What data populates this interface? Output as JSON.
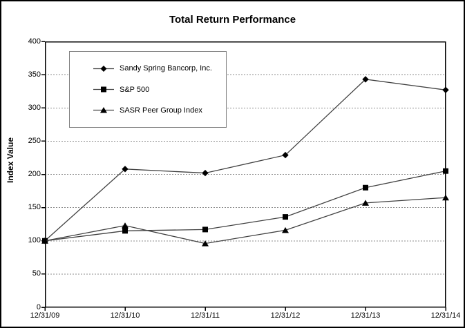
{
  "chart": {
    "title": "Total Return Performance",
    "y_axis_title": "Index Value"
  },
  "chart_data": {
    "type": "line",
    "title": "Total Return Performance",
    "xlabel": "",
    "ylabel": "Index Value",
    "categories": [
      "12/31/09",
      "12/31/10",
      "12/31/11",
      "12/31/12",
      "12/31/13",
      "12/31/14"
    ],
    "series": [
      {
        "name": "Sandy Spring Bancorp, Inc.",
        "marker": "diamond",
        "values": [
          100,
          208,
          202,
          229,
          343,
          327
        ]
      },
      {
        "name": "S&P 500",
        "marker": "square",
        "values": [
          100,
          115,
          117,
          136,
          180,
          205
        ]
      },
      {
        "name": "SASR Peer Group Index",
        "marker": "triangle",
        "values": [
          100,
          123,
          96,
          116,
          157,
          165
        ]
      }
    ],
    "ylim": [
      0,
      400
    ],
    "ytick_step": 50,
    "grid": "horizontal-dashed",
    "legend_position": "inside-top-left",
    "colors": {
      "line": "#404040",
      "marker": "#000000",
      "grid": "#8c8c8c",
      "axis": "#000000",
      "legend_border": "#808080",
      "background": "#ffffff"
    }
  }
}
